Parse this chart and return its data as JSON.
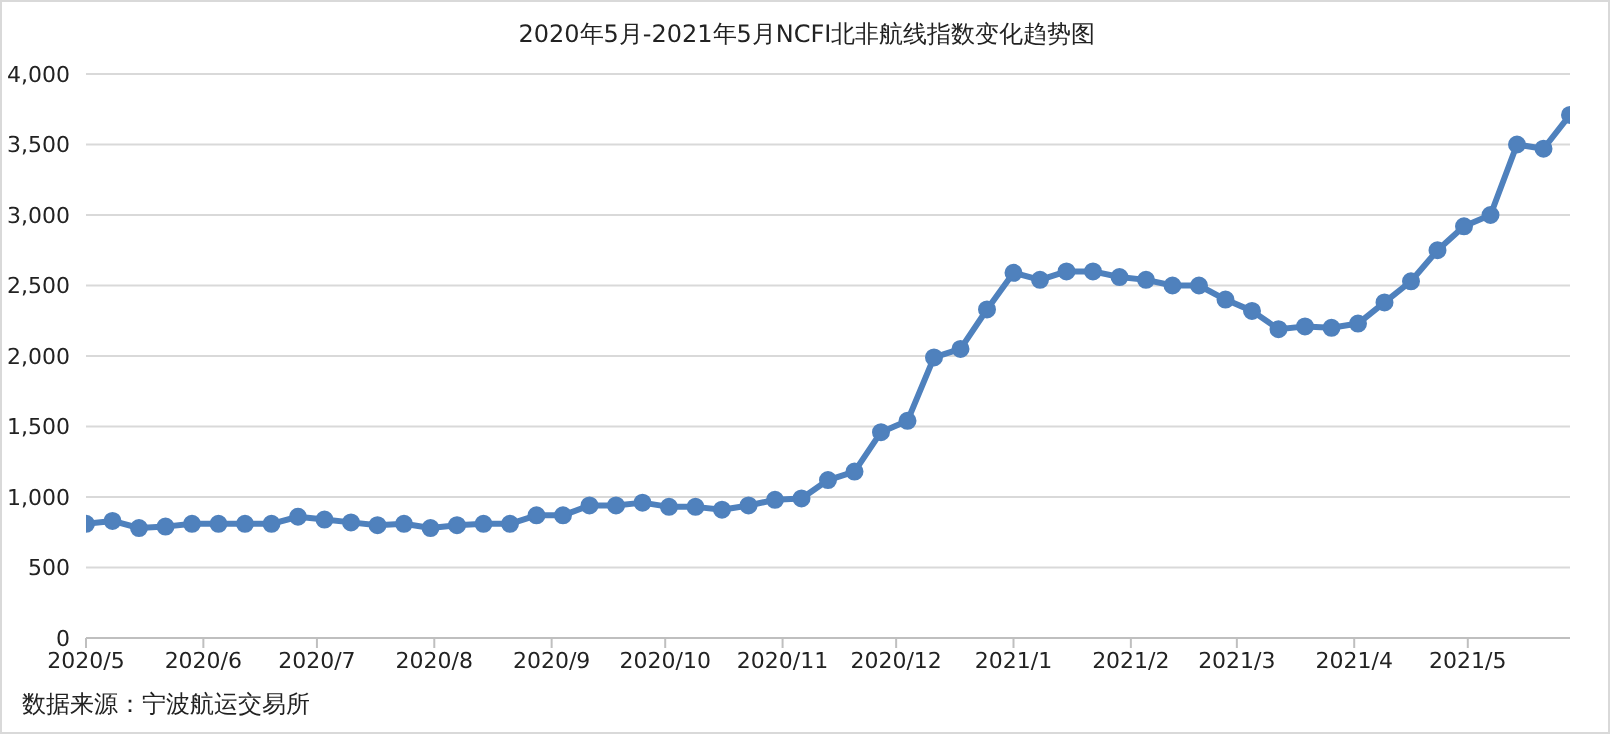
{
  "chart_data": {
    "type": "line",
    "title": "2020年5月-2021年5月NCFI北非航线指数变化趋势图",
    "annotations": [
      "数据来源：宁波航运交易所"
    ],
    "x": [
      "2020-05-01",
      "2020-05-08",
      "2020-05-15",
      "2020-05-22",
      "2020-05-29",
      "2020-06-05",
      "2020-06-12",
      "2020-06-19",
      "2020-06-26",
      "2020-07-03",
      "2020-07-10",
      "2020-07-17",
      "2020-07-24",
      "2020-07-31",
      "2020-08-07",
      "2020-08-14",
      "2020-08-21",
      "2020-08-28",
      "2020-09-04",
      "2020-09-11",
      "2020-09-18",
      "2020-09-25",
      "2020-10-02",
      "2020-10-09",
      "2020-10-16",
      "2020-10-23",
      "2020-10-30",
      "2020-11-06",
      "2020-11-13",
      "2020-11-20",
      "2020-11-27",
      "2020-12-04",
      "2020-12-11",
      "2020-12-18",
      "2020-12-25",
      "2021-01-01",
      "2021-01-08",
      "2021-01-15",
      "2021-01-22",
      "2021-01-29",
      "2021-02-05",
      "2021-02-12",
      "2021-02-19",
      "2021-02-26",
      "2021-03-05",
      "2021-03-12",
      "2021-03-19",
      "2021-03-26",
      "2021-04-02",
      "2021-04-09",
      "2021-04-16",
      "2021-04-23",
      "2021-04-30",
      "2021-05-07",
      "2021-05-14",
      "2021-05-21",
      "2021-05-28"
    ],
    "series": [
      {
        "color": "#4f81bd",
        "values": [
          810,
          830,
          780,
          790,
          810,
          810,
          810,
          810,
          860,
          840,
          820,
          800,
          810,
          780,
          800,
          810,
          810,
          870,
          870,
          940,
          940,
          960,
          930,
          930,
          910,
          940,
          980,
          990,
          1120,
          1180,
          1460,
          1540,
          1990,
          2050,
          2330,
          2590,
          2540,
          2600,
          2600,
          2560,
          2540,
          2500,
          2500,
          2400,
          2320,
          2190,
          2210,
          2200,
          2230,
          2380,
          2530,
          2750,
          2920,
          3000,
          3500,
          3470,
          3710
        ]
      }
    ],
    "xlim": [
      "2020-05-01",
      "2021-05-28"
    ],
    "xticks": [
      {
        "value": "2020-05-01",
        "label": "2020/5"
      },
      {
        "value": "2020-06-01",
        "label": "2020/6"
      },
      {
        "value": "2020-07-01",
        "label": "2020/7"
      },
      {
        "value": "2020-08-01",
        "label": "2020/8"
      },
      {
        "value": "2020-09-01",
        "label": "2020/9"
      },
      {
        "value": "2020-10-01",
        "label": "2020/10"
      },
      {
        "value": "2020-11-01",
        "label": "2020/11"
      },
      {
        "value": "2020-12-01",
        "label": "2020/12"
      },
      {
        "value": "2021-01-01",
        "label": "2021/1"
      },
      {
        "value": "2021-02-01",
        "label": "2021/2"
      },
      {
        "value": "2021-03-01",
        "label": "2021/3"
      },
      {
        "value": "2021-04-01",
        "label": "2021/4"
      },
      {
        "value": "2021-05-01",
        "label": "2021/5"
      }
    ],
    "ylim": [
      0,
      4000
    ],
    "yticks": [
      {
        "value": 0,
        "label": "0"
      },
      {
        "value": 500,
        "label": "500"
      },
      {
        "value": 1000,
        "label": "1,000"
      },
      {
        "value": 1500,
        "label": "1,500"
      },
      {
        "value": 2000,
        "label": "2,000"
      },
      {
        "value": 2500,
        "label": "2,500"
      },
      {
        "value": 3000,
        "label": "3,000"
      },
      {
        "value": 3500,
        "label": "3,500"
      },
      {
        "value": 4000,
        "label": "4,000"
      }
    ],
    "grid": "y",
    "marker": "circle",
    "line_style": "solid",
    "legend": false
  }
}
